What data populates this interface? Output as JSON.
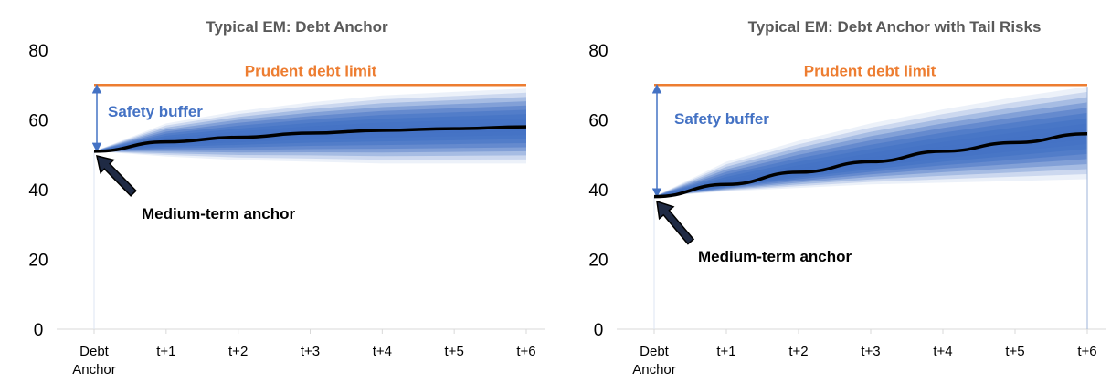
{
  "chart_data": [
    {
      "type": "area",
      "title": "Typical EM: Debt Anchor",
      "categories": [
        "Debt Anchor",
        "t+1",
        "t+2",
        "t+3",
        "t+4",
        "t+5",
        "t+6"
      ],
      "ylim": [
        0,
        80
      ],
      "yticks": [
        0,
        20,
        40,
        60,
        80
      ],
      "series": [
        {
          "name": "Prudent debt limit",
          "values": [
            70,
            70,
            70,
            70,
            70,
            70,
            70
          ]
        },
        {
          "values": [
            51,
            53.7,
            55,
            56.2,
            57,
            57.5,
            58
          ]
        }
      ],
      "fan_upper": [
        51,
        59,
        62.5,
        65,
        67,
        68,
        69
      ],
      "fan_lower": [
        51,
        49.5,
        48.5,
        48,
        47.5,
        47.5,
        47.5
      ],
      "annotations": {
        "limit": "Prudent debt limit",
        "buffer": "Safety buffer",
        "anchor": "Medium-term anchor"
      },
      "grid": false,
      "colors": {
        "limit": "#ED7D31",
        "central": "#000000",
        "fan": "#4472C4",
        "buffer": "#4472C4"
      }
    },
    {
      "type": "area",
      "title": "Typical EM: Debt Anchor with Tail Risks",
      "categories": [
        "Debt Anchor",
        "t+1",
        "t+2",
        "t+3",
        "t+4",
        "t+5",
        "t+6"
      ],
      "ylim": [
        0,
        80
      ],
      "yticks": [
        0,
        20,
        40,
        60,
        80
      ],
      "series": [
        {
          "name": "Prudent debt limit",
          "values": [
            70,
            70,
            70,
            70,
            70,
            70,
            70
          ]
        },
        {
          "values": [
            38,
            41.5,
            45,
            48,
            51,
            53.5,
            56
          ]
        }
      ],
      "fan_upper": [
        38,
        48,
        54,
        59,
        63,
        66.5,
        69.5
      ],
      "fan_lower": [
        38,
        39.5,
        40.5,
        41.5,
        42,
        42.5,
        43
      ],
      "annotations": {
        "limit": "Prudent debt limit",
        "buffer": "Safety buffer",
        "anchor": "Medium-term anchor"
      },
      "grid": false,
      "colors": {
        "limit": "#ED7D31",
        "central": "#000000",
        "fan": "#4472C4",
        "buffer": "#4472C4"
      }
    }
  ]
}
